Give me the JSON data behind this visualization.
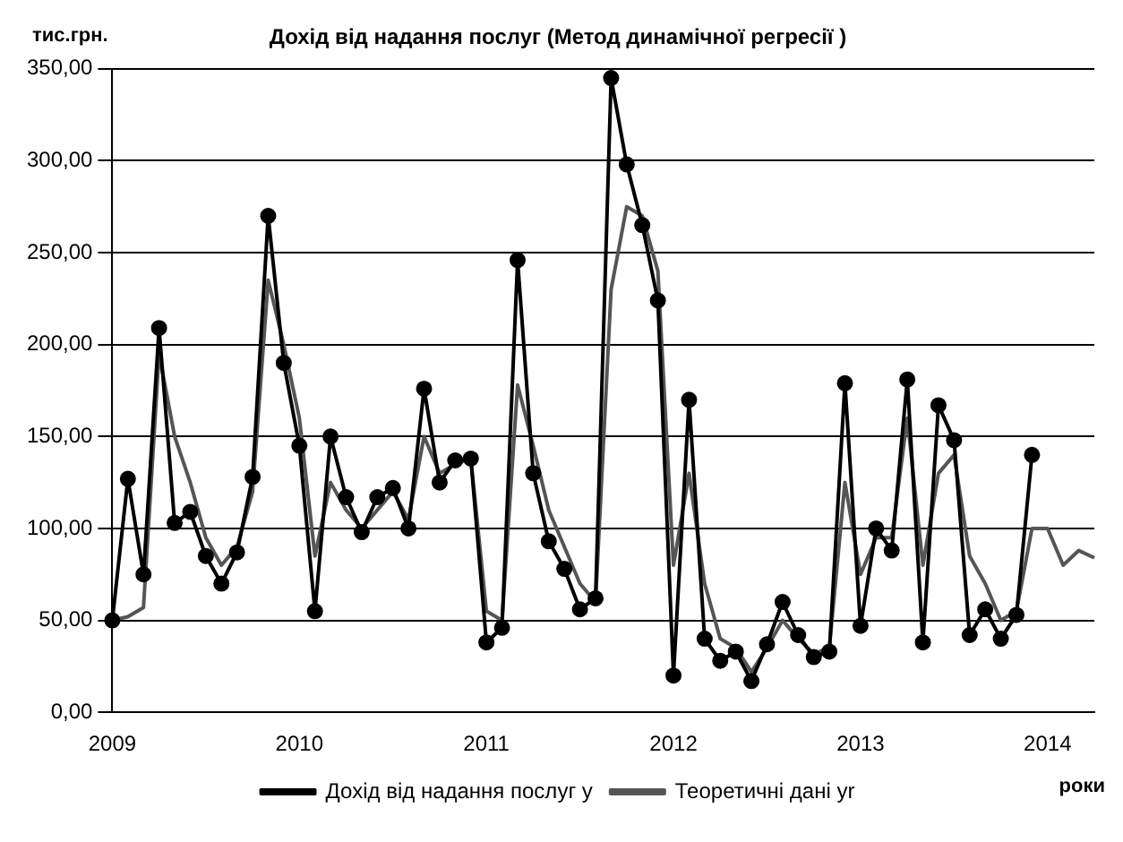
{
  "chart_data": {
    "type": "line",
    "title": "Дохід від надання послуг (Метод динамічної регресії )",
    "ylabel": "тис.грн.",
    "xlabel": "роки",
    "categories": [
      "2009",
      null,
      null,
      null,
      null,
      null,
      null,
      null,
      null,
      null,
      null,
      null,
      "2010",
      null,
      null,
      null,
      null,
      null,
      null,
      null,
      null,
      null,
      null,
      null,
      "2011",
      null,
      null,
      null,
      null,
      null,
      null,
      null,
      null,
      null,
      null,
      null,
      "2012",
      null,
      null,
      null,
      null,
      null,
      null,
      null,
      null,
      null,
      null,
      null,
      "2013",
      null,
      null,
      null,
      null,
      null,
      null,
      null,
      null,
      null,
      null,
      null,
      "2014",
      null,
      null,
      null
    ],
    "series": [
      {
        "name": "Дохід від надання послуг y",
        "color": "#000000",
        "marker": "circle",
        "values": [
          50,
          127,
          75,
          209,
          103,
          109,
          85,
          70,
          87,
          128,
          270,
          190,
          145,
          55,
          150,
          117,
          98,
          117,
          122,
          100,
          176,
          125,
          137,
          138,
          38,
          46,
          246,
          130,
          93,
          78,
          56,
          62,
          345,
          298,
          265,
          224,
          20,
          170,
          40,
          28,
          33,
          17,
          37,
          60,
          42,
          30,
          33,
          179,
          47,
          100,
          88,
          181,
          38,
          167,
          148,
          42,
          56,
          40,
          53,
          140,
          null,
          null,
          null,
          null
        ]
      },
      {
        "name": "Теоретичні дані yr",
        "color": "#555555",
        "marker": "none",
        "values": [
          50,
          52,
          57,
          195,
          150,
          125,
          95,
          80,
          90,
          120,
          235,
          200,
          160,
          85,
          125,
          110,
          100,
          110,
          120,
          105,
          150,
          130,
          135,
          138,
          55,
          50,
          178,
          145,
          110,
          90,
          70,
          60,
          230,
          275,
          270,
          240,
          80,
          130,
          70,
          40,
          35,
          22,
          35,
          50,
          40,
          32,
          35,
          125,
          75,
          95,
          95,
          160,
          80,
          130,
          140,
          85,
          70,
          50,
          55,
          100,
          100,
          80,
          88,
          84
        ]
      }
    ],
    "ylim": [
      0,
      350
    ],
    "yticks": [
      {
        "value": 0,
        "label": "0,00"
      },
      {
        "value": 50,
        "label": "50,00"
      },
      {
        "value": 100,
        "label": "100,00"
      },
      {
        "value": 150,
        "label": "150,00"
      },
      {
        "value": 200,
        "label": "200,00"
      },
      {
        "value": 250,
        "label": "250,00"
      },
      {
        "value": 300,
        "label": "300,00"
      },
      {
        "value": 350,
        "label": "350,00"
      }
    ],
    "grid": "y",
    "legend": "bottom",
    "line_style": "solid"
  }
}
